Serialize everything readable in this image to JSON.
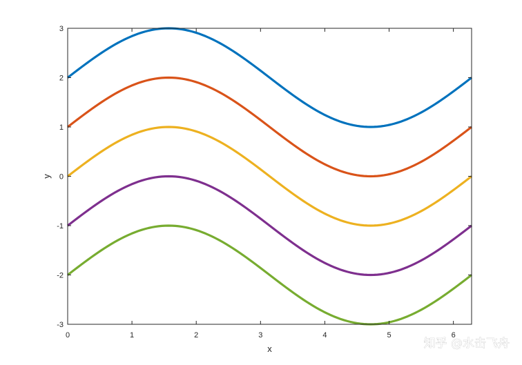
{
  "chart_data": {
    "type": "line",
    "title": "",
    "xlabel": "x",
    "ylabel": "y",
    "xlim": [
      0,
      6.2832
    ],
    "ylim": [
      -3,
      3
    ],
    "xticks": [
      0,
      1,
      2,
      3,
      4,
      5,
      6
    ],
    "yticks": [
      -3,
      -2,
      -1,
      0,
      1,
      2,
      3
    ],
    "grid": false,
    "x_sample_points": 121,
    "series": [
      {
        "function": "sin(x)+2",
        "offset": 2,
        "color": "#0072BD"
      },
      {
        "function": "sin(x)+1",
        "offset": 1,
        "color": "#D95319"
      },
      {
        "function": "sin(x)",
        "offset": 0,
        "color": "#EDB120"
      },
      {
        "function": "sin(x)-1",
        "offset": -1,
        "color": "#7E2F8E"
      },
      {
        "function": "sin(x)-2",
        "offset": -2,
        "color": "#77AC30"
      }
    ]
  },
  "watermark": {
    "text": "知乎 @水击飞舟"
  }
}
